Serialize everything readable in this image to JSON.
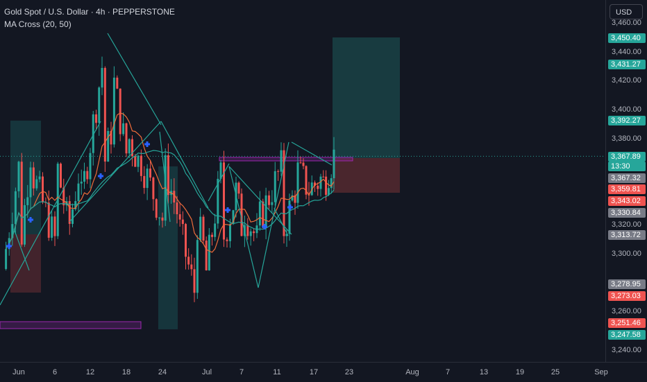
{
  "header": {
    "title": "Gold Spot / U.S. Dollar · 4h · PEPPERSTONE",
    "indicator": "MA Cross (20, 50)"
  },
  "currency_button": "USD",
  "colors": {
    "background": "#131722",
    "up": "#26a69a",
    "down": "#ef5350",
    "ma_fast": "#ef6c3a",
    "ma_slow": "#26a69a",
    "trendline": "#26a69a",
    "zone": "#9c27b0",
    "cross_marker": "#2962ff"
  },
  "y_axis": {
    "ticks": [
      "3,460.00",
      "3,440.00",
      "3,420.00",
      "3,400.00",
      "3,380.00",
      "3,320.00",
      "3,300.00",
      "3,260.00",
      "3,240.00"
    ]
  },
  "price_labels": [
    {
      "text": "3,450.40",
      "bg": "#26a69a",
      "color": "#ffffff"
    },
    {
      "text": "3,431.27",
      "bg": "#26a69a",
      "color": "#ffffff"
    },
    {
      "text": "3,392.27",
      "bg": "#26a69a",
      "color": "#ffffff"
    },
    {
      "text": "3,367.89",
      "bg": "#26a69a",
      "color": "#ffffff"
    },
    {
      "text": "13:30",
      "bg": "#26a69a",
      "color": "#ffffff"
    },
    {
      "text": "3,367.32",
      "bg": "#787b86",
      "color": "#ffffff"
    },
    {
      "text": "3,359.81",
      "bg": "#ef5350",
      "color": "#ffffff"
    },
    {
      "text": "3,343.02",
      "bg": "#ef5350",
      "color": "#ffffff"
    },
    {
      "text": "3,330.84",
      "bg": "#787b86",
      "color": "#ffffff"
    },
    {
      "text": "3,313.72",
      "bg": "#787b86",
      "color": "#ffffff"
    },
    {
      "text": "3,278.95",
      "bg": "#787b86",
      "color": "#ffffff"
    },
    {
      "text": "3,273.03",
      "bg": "#ef5350",
      "color": "#ffffff"
    },
    {
      "text": "3,251.46",
      "bg": "#ef5350",
      "color": "#ffffff"
    },
    {
      "text": "3,247.58",
      "bg": "#26a69a",
      "color": "#ffffff"
    }
  ],
  "x_axis": {
    "ticks": [
      "Jun",
      "6",
      "12",
      "18",
      "24",
      "Jul",
      "7",
      "11",
      "17",
      "23",
      "Aug",
      "7",
      "13",
      "19",
      "25",
      "Sep"
    ]
  },
  "chart_data": {
    "type": "candlestick",
    "title": "Gold Spot / U.S. Dollar · 4h · PEPPERSTONE",
    "indicator": "MA Cross (20, 50)",
    "ylim": [
      3236,
      3482
    ],
    "last_price": 3367.89,
    "candles_daily_approx": [
      {
        "date": "May 29",
        "open": 3290,
        "close": 3305
      },
      {
        "date": "Jun 2",
        "open": 3295,
        "close": 3360
      },
      {
        "date": "Jun 4",
        "open": 3360,
        "close": 3370
      },
      {
        "date": "Jun 6",
        "open": 3370,
        "close": 3310
      },
      {
        "date": "Jun 9",
        "open": 3310,
        "close": 3325
      },
      {
        "date": "Jun 11",
        "open": 3325,
        "close": 3355
      },
      {
        "date": "Jun 13",
        "open": 3355,
        "close": 3430
      },
      {
        "date": "Jun 16",
        "open": 3430,
        "close": 3385
      },
      {
        "date": "Jun 18",
        "open": 3385,
        "close": 3370
      },
      {
        "date": "Jun 20",
        "open": 3370,
        "close": 3365
      },
      {
        "date": "Jun 23",
        "open": 3365,
        "close": 3325
      },
      {
        "date": "Jun 25",
        "open": 3325,
        "close": 3330
      },
      {
        "date": "Jun 27",
        "open": 3330,
        "close": 3275
      },
      {
        "date": "Jun 30",
        "open": 3275,
        "close": 3305
      },
      {
        "date": "Jul 2",
        "open": 3305,
        "close": 3355
      },
      {
        "date": "Jul 4",
        "open": 3355,
        "close": 3335
      },
      {
        "date": "Jul 7",
        "open": 3335,
        "close": 3320
      },
      {
        "date": "Jul 9",
        "open": 3320,
        "close": 3310
      },
      {
        "date": "Jul 11",
        "open": 3310,
        "close": 3360
      },
      {
        "date": "Jul 14",
        "open": 3360,
        "close": 3345
      },
      {
        "date": "Jul 16",
        "open": 3345,
        "close": 3345
      },
      {
        "date": "Jul 18",
        "open": 3345,
        "close": 3352
      },
      {
        "date": "Jul 21",
        "open": 3352,
        "close": 3368
      }
    ],
    "position_tool": {
      "entry": 3367.89,
      "target": 3450.4,
      "stop": 3343.02
    }
  }
}
